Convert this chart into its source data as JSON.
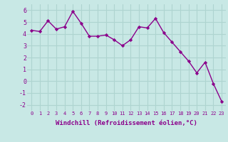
{
  "x": [
    0,
    1,
    2,
    3,
    4,
    5,
    6,
    7,
    8,
    9,
    10,
    11,
    12,
    13,
    14,
    15,
    16,
    17,
    18,
    19,
    20,
    21,
    22,
    23
  ],
  "y": [
    4.3,
    4.2,
    5.1,
    4.4,
    4.6,
    5.9,
    4.9,
    3.8,
    3.8,
    3.9,
    3.5,
    3.0,
    3.5,
    4.6,
    4.5,
    5.3,
    4.1,
    3.3,
    2.5,
    1.7,
    0.7,
    1.6,
    -0.2,
    -1.7
  ],
  "line_color": "#8b008b",
  "marker": "D",
  "marker_size": 2.2,
  "linewidth": 1.0,
  "bg_color": "#c8e8e5",
  "grid_color": "#aed4d0",
  "xlabel": "Windchill (Refroidissement éolien,°C)",
  "xlabel_color": "#8b008b",
  "tick_color": "#8b008b",
  "xlim": [
    -0.5,
    23.5
  ],
  "ylim": [
    -2.5,
    6.5
  ],
  "yticks": [
    -2,
    -1,
    0,
    1,
    2,
    3,
    4,
    5,
    6
  ],
  "xticks": [
    0,
    1,
    2,
    3,
    4,
    5,
    6,
    7,
    8,
    9,
    10,
    11,
    12,
    13,
    14,
    15,
    16,
    17,
    18,
    19,
    20,
    21,
    22,
    23
  ],
  "xtick_labels": [
    "0",
    "1",
    "2",
    "3",
    "4",
    "5",
    "6",
    "7",
    "8",
    "9",
    "10",
    "11",
    "12",
    "13",
    "14",
    "15",
    "16",
    "17",
    "18",
    "19",
    "20",
    "21",
    "22",
    "23"
  ],
  "xlabel_fontsize": 6.5,
  "xtick_fontsize": 5.0,
  "ytick_fontsize": 6.0
}
